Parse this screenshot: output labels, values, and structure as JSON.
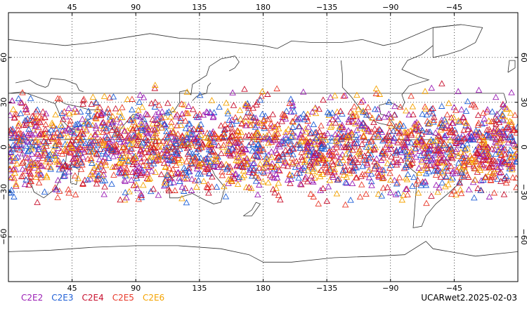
{
  "map": {
    "projection": "equirectangular, centered on 180",
    "lon_range": [
      0,
      360
    ],
    "lat_range": [
      -90,
      90
    ],
    "graticule": "dotted",
    "x_ticks": [
      {
        "lon": 45,
        "label": "45"
      },
      {
        "lon": 90,
        "label": "90"
      },
      {
        "lon": 135,
        "label": "135"
      },
      {
        "lon": 180,
        "label": "180"
      },
      {
        "lon": 225,
        "label": "−135"
      },
      {
        "lon": 270,
        "label": "−90"
      },
      {
        "lon": 315,
        "label": "−45"
      }
    ],
    "y_ticks": [
      {
        "lat": 60,
        "label": "60"
      },
      {
        "lat": 30,
        "label": "30"
      },
      {
        "lat": 0,
        "label": "0"
      },
      {
        "lat": -30,
        "label": "−30"
      },
      {
        "lat": -60,
        "label": "−60"
      }
    ],
    "marker": "open-triangle",
    "obs_lat_band": [
      -45,
      45
    ],
    "density": "very dense, overlapping"
  },
  "legend": {
    "items": [
      {
        "label": "C2E2",
        "color": "#9b1fb5"
      },
      {
        "label": "C2E3",
        "color": "#1f5fd6"
      },
      {
        "label": "C2E4",
        "color": "#c8102e"
      },
      {
        "label": "C2E5",
        "color": "#e8392a"
      },
      {
        "label": "C2E6",
        "color": "#f5a300"
      }
    ]
  },
  "footer": {
    "label": "UCARwet2.2025-02-03"
  }
}
